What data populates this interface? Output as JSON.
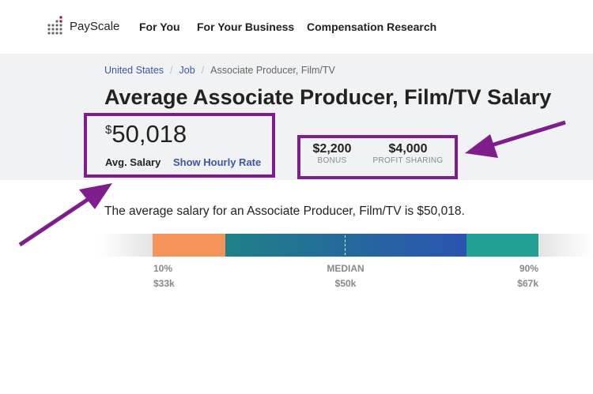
{
  "header": {
    "brand": "PayScale",
    "nav": [
      "For You",
      "For Your Business",
      "Compensation Research"
    ]
  },
  "breadcrumb": [
    "United States",
    "Job",
    "Associate Producer, Film/TV"
  ],
  "title": "Average Associate Producer, Film/TV Salary",
  "salary": {
    "currency": "$",
    "value": "50,018",
    "label": "Avg. Salary",
    "hourly_link": "Show Hourly Rate"
  },
  "extras": [
    {
      "value": "$2,200",
      "label": "BONUS"
    },
    {
      "value": "$4,000",
      "label": "PROFIT SHARING"
    }
  ],
  "sentence": "The average salary for an Associate Producer, Film/TV is $50,018.",
  "range": {
    "low": {
      "label": "10%",
      "value": "$33k"
    },
    "median": {
      "label": "MEDIAN",
      "value": "$50k"
    },
    "high": {
      "label": "90%",
      "value": "$67k"
    }
  },
  "colors": {
    "annotation": "#7d1e8c",
    "low": "#f4935a",
    "mid_start": "#1f8087",
    "mid_end": "#2b53b0",
    "high": "#22a093",
    "link": "#3a57a7"
  }
}
